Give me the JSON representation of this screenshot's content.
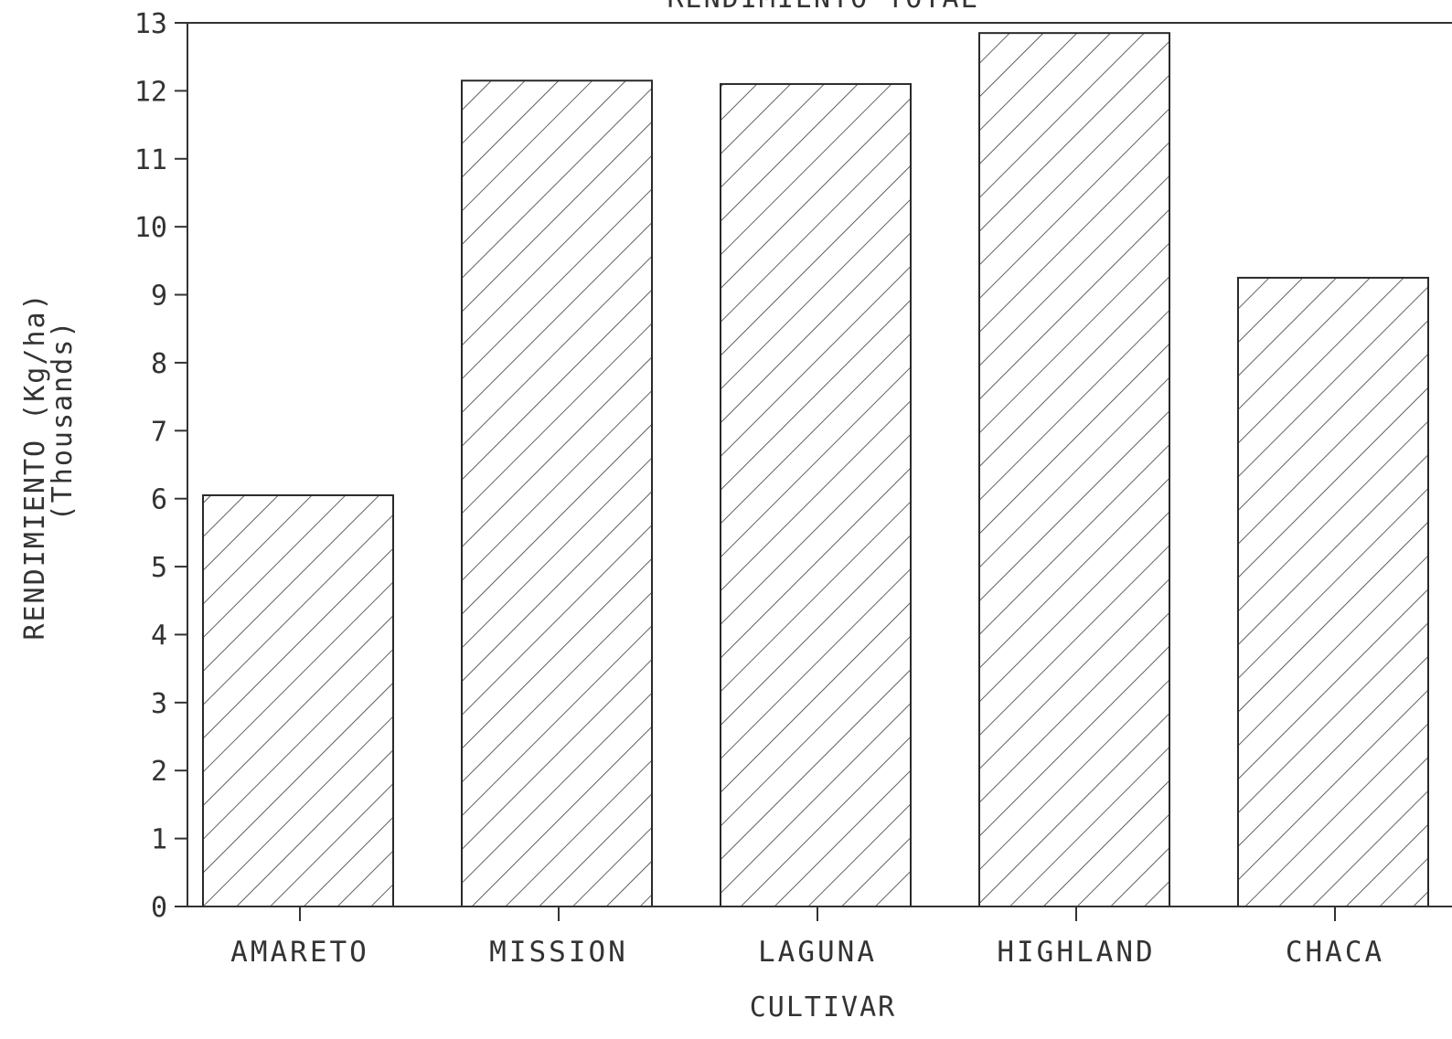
{
  "chart_data": {
    "type": "bar",
    "title": "RENDIMIENTO TOTAL",
    "xlabel": "CULTIVAR",
    "ylabel": "RENDIMIENTO (Kg/ha)",
    "ylabel_units": "(Thousands)",
    "categories": [
      "AMARETO",
      "MISSION",
      "LAGUNA",
      "HIGHLAND",
      "CHACA"
    ],
    "values": [
      6.05,
      12.15,
      12.1,
      12.85,
      9.25
    ],
    "ylim": [
      0,
      13
    ],
    "yticks": [
      "0",
      "1",
      "2",
      "3",
      "4",
      "5",
      "6",
      "7",
      "8",
      "9",
      "10",
      "11",
      "12",
      "13"
    ],
    "fill": "diagonal hatch",
    "colors": {
      "line": "#2a2a2a",
      "text": "#333333",
      "background": "#ffffff"
    },
    "grid": false,
    "legend": "none"
  }
}
